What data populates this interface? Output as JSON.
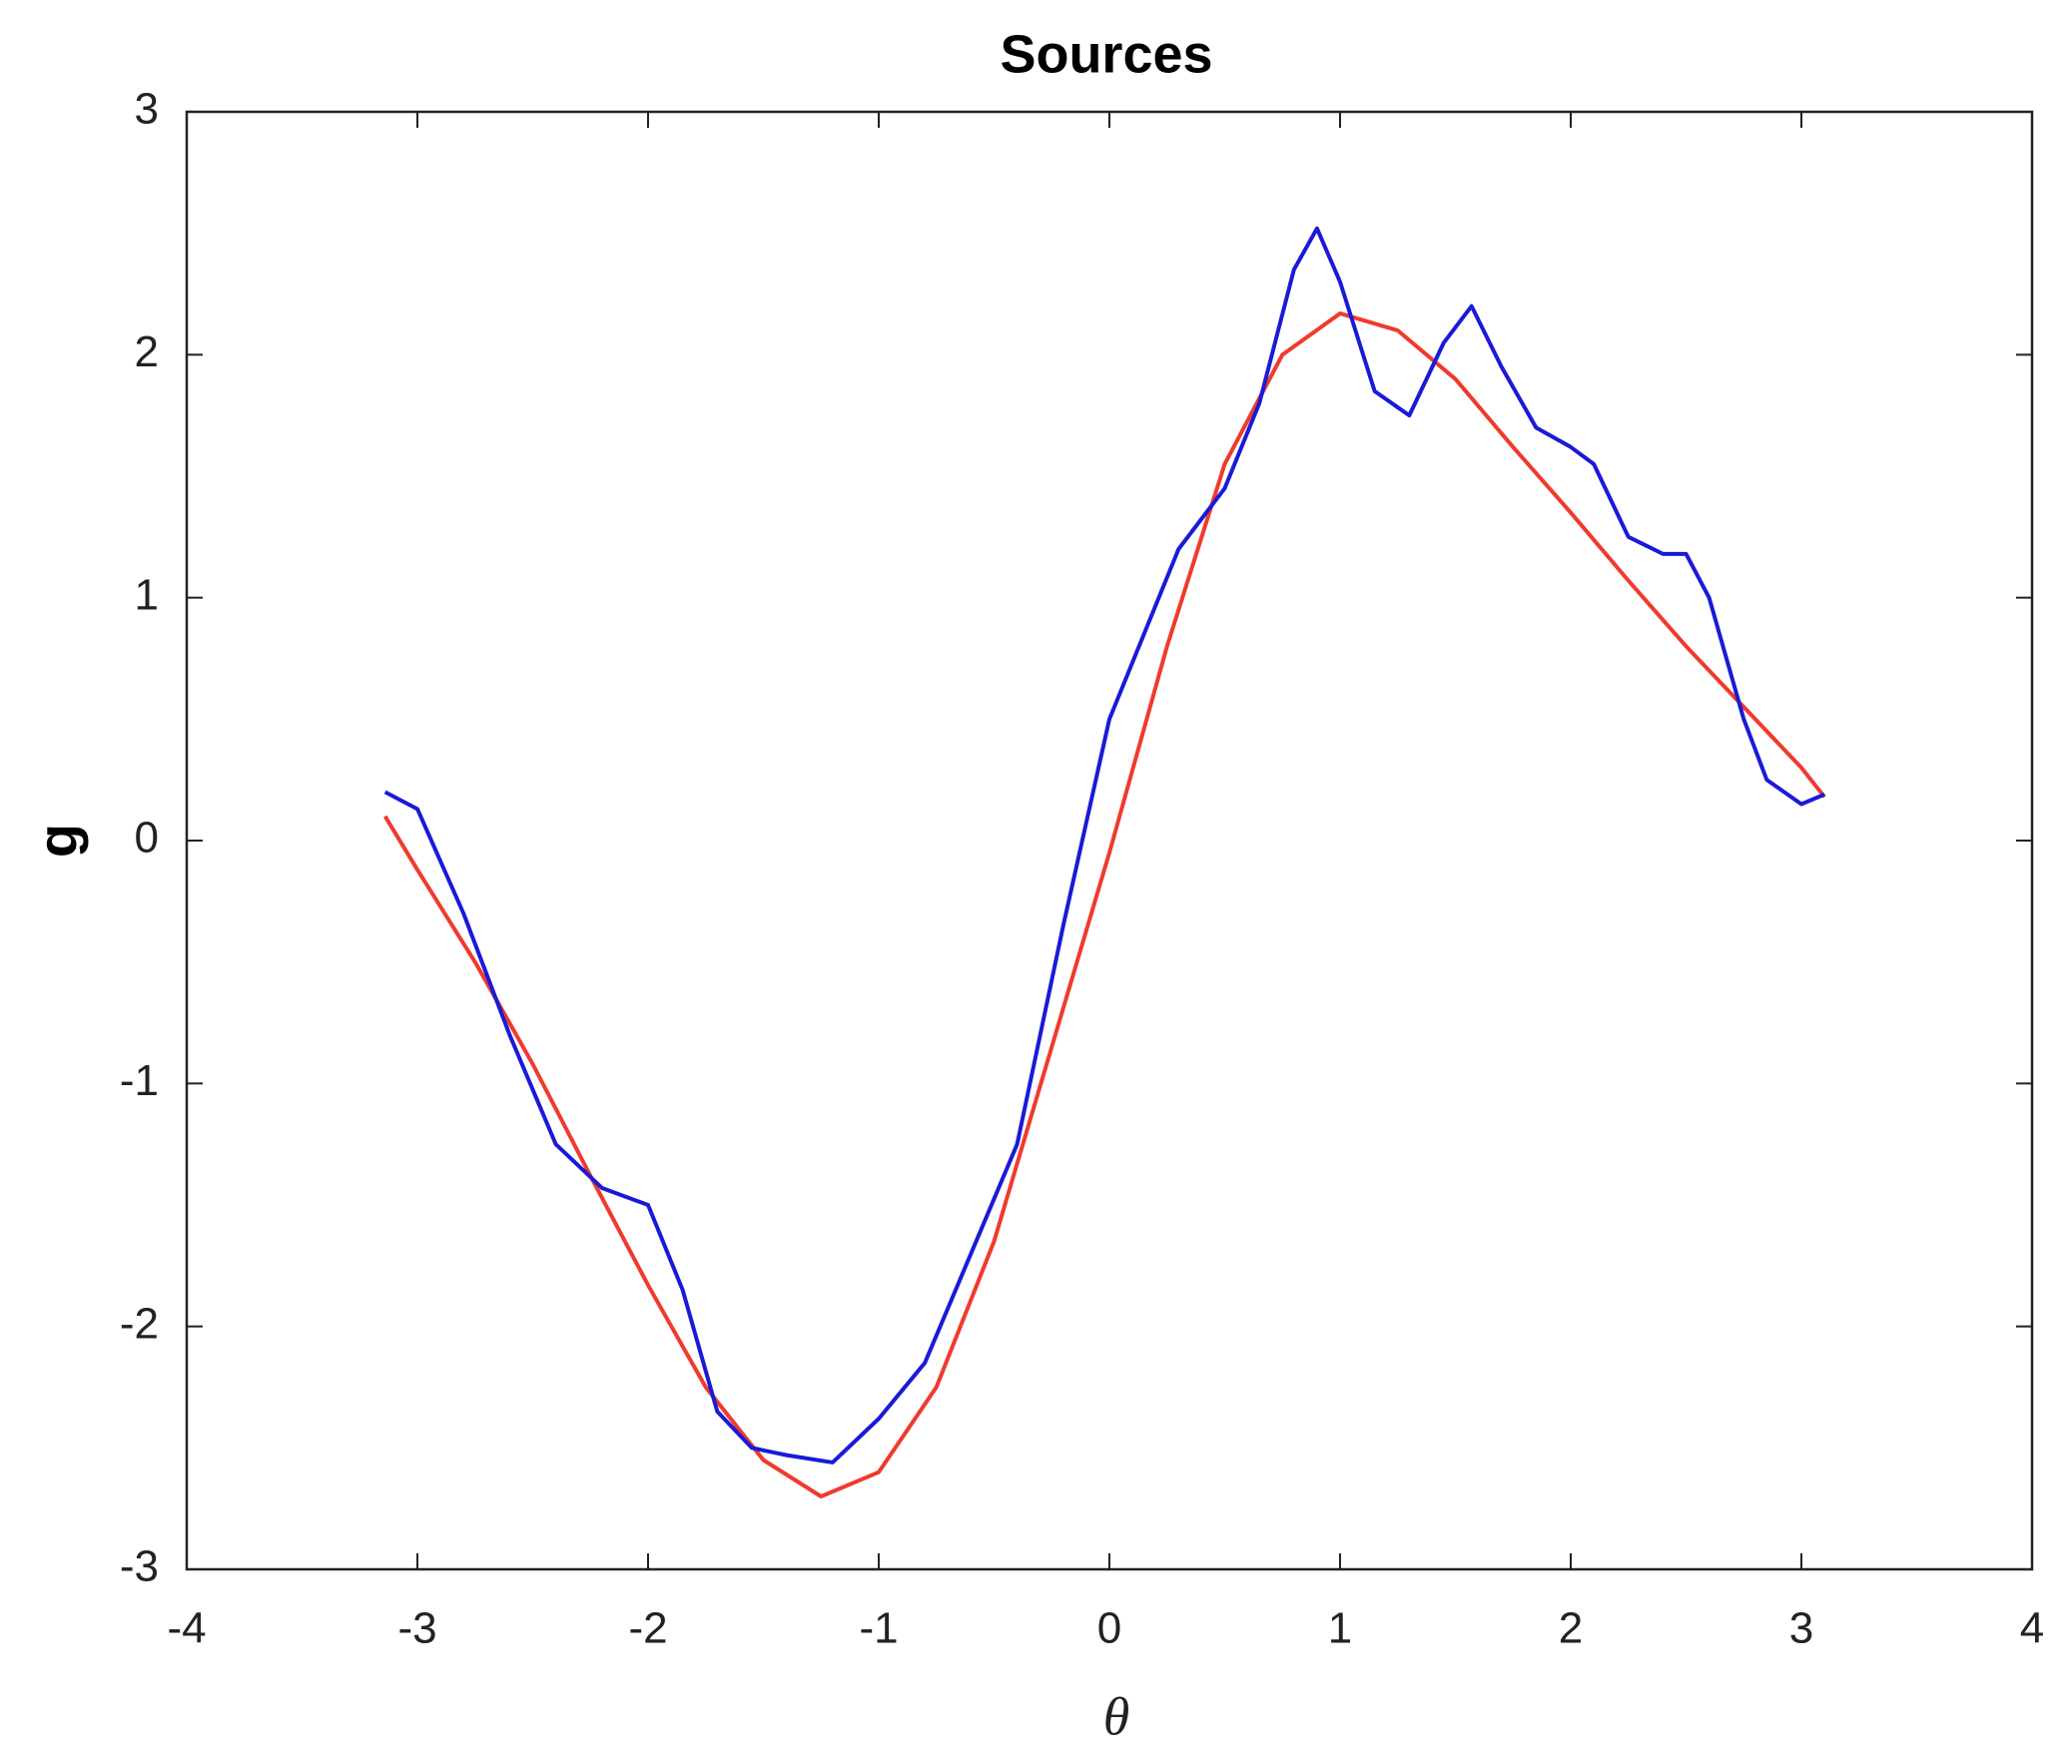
{
  "chart_data": {
    "type": "line",
    "title": "Sources",
    "x_label": "θ",
    "y_label": "g",
    "xlim": [
      -4,
      4
    ],
    "ylim": [
      -3,
      3
    ],
    "xticks": [
      -4,
      -3,
      -2,
      -1,
      0,
      1,
      2,
      3,
      4
    ],
    "yticks": [
      -3,
      -2,
      -1,
      0,
      1,
      2,
      3
    ],
    "grid": false,
    "box": true,
    "series": [
      {
        "color": "#f03a2e",
        "x": [
          -3.14,
          -3.0,
          -2.75,
          -2.5,
          -2.25,
          -2.0,
          -1.75,
          -1.5,
          -1.25,
          -1.0,
          -0.75,
          -0.5,
          -0.25,
          0,
          0.25,
          0.5,
          0.75,
          1.0,
          1.25,
          1.5,
          1.75,
          2.0,
          2.25,
          2.5,
          2.75,
          3.0,
          3.1
        ],
        "values": [
          0.1,
          -0.12,
          -0.5,
          -0.92,
          -1.38,
          -1.83,
          -2.25,
          -2.55,
          -2.7,
          -2.6,
          -2.25,
          -1.65,
          -0.85,
          -0.05,
          0.8,
          1.55,
          2.0,
          2.17,
          2.1,
          1.9,
          1.62,
          1.35,
          1.07,
          0.8,
          0.55,
          0.3,
          0.18
        ]
      },
      {
        "color": "#1a1ad6",
        "x": [
          -3.14,
          -3.0,
          -2.8,
          -2.6,
          -2.4,
          -2.2,
          -2.0,
          -1.85,
          -1.7,
          -1.55,
          -1.4,
          -1.2,
          -1.0,
          -0.8,
          -0.6,
          -0.4,
          -0.2,
          0,
          0.15,
          0.3,
          0.5,
          0.65,
          0.8,
          0.9,
          1.0,
          1.15,
          1.3,
          1.45,
          1.57,
          1.7,
          1.85,
          2.0,
          2.1,
          2.25,
          2.4,
          2.5,
          2.6,
          2.75,
          2.85,
          3.0,
          3.1
        ],
        "values": [
          0.2,
          0.13,
          -0.3,
          -0.8,
          -1.25,
          -1.43,
          -1.5,
          -1.85,
          -2.35,
          -2.5,
          -2.53,
          -2.56,
          -2.38,
          -2.15,
          -1.7,
          -1.25,
          -0.35,
          0.5,
          0.85,
          1.2,
          1.45,
          1.8,
          2.35,
          2.52,
          2.3,
          1.85,
          1.75,
          2.05,
          2.2,
          1.95,
          1.7,
          1.62,
          1.55,
          1.25,
          1.18,
          1.18,
          1.0,
          0.5,
          0.25,
          0.15,
          0.19
        ]
      }
    ]
  }
}
